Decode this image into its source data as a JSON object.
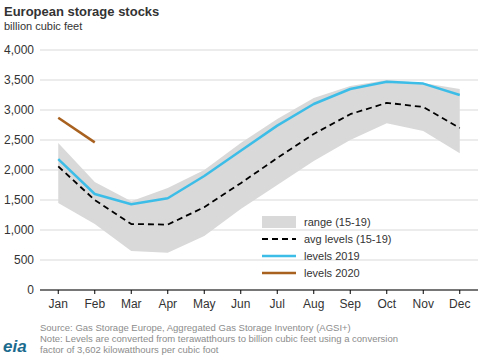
{
  "chart_data": {
    "type": "line",
    "title": "European storage stocks",
    "subtitle": "billion cubic feet",
    "categories": [
      "Jan",
      "Feb",
      "Mar",
      "Apr",
      "May",
      "Jun",
      "Jul",
      "Aug",
      "Sep",
      "Oct",
      "Nov",
      "Dec"
    ],
    "series": [
      {
        "name": "range (15-19)",
        "type": "band",
        "color": "#d9d9d9",
        "low": [
          1450,
          1100,
          650,
          620,
          900,
          1350,
          1750,
          2150,
          2500,
          2780,
          2650,
          2280
        ],
        "high": [
          2450,
          1800,
          1480,
          1700,
          2000,
          2450,
          2850,
          3200,
          3400,
          3500,
          3450,
          3350
        ]
      },
      {
        "name": "avg levels (15-19)",
        "color": "#000000",
        "line_style": "dashed",
        "values": [
          2060,
          1500,
          1100,
          1090,
          1380,
          1780,
          2200,
          2600,
          2930,
          3120,
          3050,
          2700
        ]
      },
      {
        "name": "levels 2019",
        "color": "#3cbde8",
        "values": [
          2180,
          1600,
          1430,
          1530,
          1900,
          2320,
          2740,
          3100,
          3350,
          3470,
          3440,
          3250
        ]
      },
      {
        "name": "levels 2020",
        "color": "#a8611f",
        "values": [
          2870,
          2460,
          null,
          null,
          null,
          null,
          null,
          null,
          null,
          null,
          null,
          null
        ]
      }
    ],
    "ylim": [
      0,
      4000
    ],
    "yticks": [
      0,
      500,
      {
        "value": 1000,
        "label": "1,000"
      },
      {
        "value": 1500,
        "label": "1,500"
      },
      {
        "value": 2000,
        "label": "2,000"
      },
      {
        "value": 2500,
        "label": "2,500"
      },
      {
        "value": 3000,
        "label": "3,000"
      },
      {
        "value": 3500,
        "label": "3,500"
      },
      {
        "value": 4000,
        "label": "4,000"
      }
    ],
    "grid": true,
    "legend": "lower right",
    "footnotes": [
      "Source: Gas Storage Europe, Aggregated Gas Storage Inventory (AGSI+)",
      "Note: Levels are converted from terawatthours to billion cubic feet using a conversion",
      "factor of 3,602 kilowatthours per cubic foot"
    ],
    "logo": "eia"
  }
}
